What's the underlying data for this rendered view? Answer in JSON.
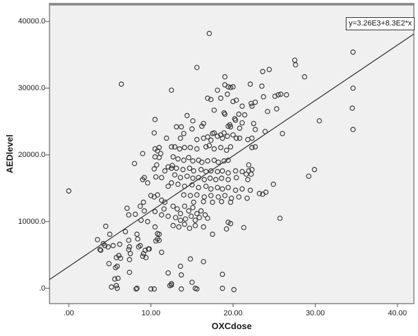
{
  "chart_data": {
    "type": "scatter",
    "title": "",
    "xlabel": "OXCdose",
    "ylabel": "AEDlevel",
    "grid": false,
    "legend": null,
    "xlim": [
      -2.34,
      42.0
    ],
    "ylim": [
      -2300,
      42700
    ],
    "x_ticks": {
      "values": [
        0,
        10,
        20,
        30,
        40
      ],
      "labels": [
        ".00",
        "10.00",
        "20.00",
        "30.00",
        "40.00"
      ]
    },
    "y_ticks": {
      "values": [
        0,
        10000,
        20000,
        30000,
        40000
      ],
      "labels": [
        ".0",
        "10000.0",
        "20000.0",
        "30000.0",
        "40000.0"
      ]
    },
    "regression_line": {
      "intercept": 3260,
      "slope": 830,
      "label": "y=3.26E3+8.3E2*x"
    },
    "marker": {
      "shape": "open-circle",
      "radius": 3.2,
      "stroke": "#3a3a3a"
    },
    "colors": {
      "page_bg": "#ffffff",
      "plot_bg": "#f0f0f0",
      "frame": "#4a4a4a",
      "top_edge": "#8a8a8a",
      "line": "#2b2b2b",
      "text": "#1a1a1a"
    },
    "points": [
      [
        6.4,
        30600
      ],
      [
        17.1,
        38200
      ],
      [
        15.6,
        33100
      ],
      [
        19.0,
        31700
      ],
      [
        23.6,
        32500
      ],
      [
        24.4,
        32800
      ],
      [
        19.0,
        30500
      ],
      [
        19.4,
        30200
      ],
      [
        19.7,
        30100
      ],
      [
        20.0,
        30200
      ],
      [
        22.1,
        30600
      ],
      [
        23.5,
        30300
      ],
      [
        18.1,
        29700
      ],
      [
        19.3,
        29100
      ],
      [
        16.9,
        28500
      ],
      [
        17.3,
        28300
      ],
      [
        18.5,
        28500
      ],
      [
        20.0,
        28000
      ],
      [
        20.4,
        28200
      ],
      [
        22.2,
        27700
      ],
      [
        22.7,
        27900
      ],
      [
        23.7,
        28700
      ],
      [
        25.1,
        28800
      ],
      [
        25.5,
        29000
      ],
      [
        25.8,
        29100
      ],
      [
        26.5,
        29000
      ],
      [
        12.5,
        29700
      ],
      [
        34.6,
        35400
      ],
      [
        27.5,
        34200
      ],
      [
        27.6,
        33500
      ],
      [
        28.7,
        31700
      ],
      [
        34.6,
        30000
      ],
      [
        10.5,
        25300
      ],
      [
        10.4,
        23300
      ],
      [
        11.9,
        22500
      ],
      [
        9.0,
        20200
      ],
      [
        10.5,
        20900
      ],
      [
        10.8,
        20600
      ],
      [
        11.0,
        21100
      ],
      [
        11.2,
        20200
      ],
      [
        10.5,
        19700
      ],
      [
        11.0,
        19600
      ],
      [
        12.5,
        21200
      ],
      [
        8.0,
        18700
      ],
      [
        10.4,
        17900
      ],
      [
        10.7,
        18500
      ],
      [
        11.7,
        17600
      ],
      [
        12.1,
        18200
      ],
      [
        9.2,
        16600
      ],
      [
        9.6,
        15800
      ],
      [
        9.0,
        16300
      ],
      [
        10.6,
        16700
      ],
      [
        11.3,
        16600
      ],
      [
        0.0,
        14600
      ],
      [
        12.1,
        15300
      ],
      [
        12.5,
        15800
      ],
      [
        9.1,
        12900
      ],
      [
        10.0,
        13900
      ],
      [
        10.4,
        13700
      ],
      [
        10.8,
        14000
      ],
      [
        11.3,
        13200
      ],
      [
        11.7,
        12900
      ],
      [
        12.5,
        18000
      ],
      [
        21.1,
        27300
      ],
      [
        22.3,
        27300
      ],
      [
        17.7,
        26700
      ],
      [
        18.9,
        26300
      ],
      [
        19.0,
        26100
      ],
      [
        24.2,
        26500
      ],
      [
        25.3,
        26900
      ],
      [
        20.7,
        26100
      ],
      [
        21.4,
        26000
      ],
      [
        14.4,
        25900
      ],
      [
        15.1,
        25100
      ],
      [
        16.4,
        24700
      ],
      [
        13.1,
        24200
      ],
      [
        13.7,
        24200
      ],
      [
        15.0,
        23900
      ],
      [
        16.2,
        24300
      ],
      [
        17.5,
        23200
      ],
      [
        17.7,
        23300
      ],
      [
        18.9,
        23300
      ],
      [
        19.4,
        24300
      ],
      [
        19.6,
        24500
      ],
      [
        19.7,
        24200
      ],
      [
        20.2,
        25400
      ],
      [
        20.3,
        25200
      ],
      [
        20.8,
        24000
      ],
      [
        21.1,
        24800
      ],
      [
        22.5,
        24700
      ],
      [
        22.7,
        23800
      ],
      [
        23.9,
        23500
      ],
      [
        26.0,
        23200
      ],
      [
        14.0,
        23200
      ],
      [
        13.6,
        22500
      ],
      [
        15.6,
        22300
      ],
      [
        16.4,
        22500
      ],
      [
        16.9,
        22700
      ],
      [
        17.3,
        22200
      ],
      [
        18.1,
        22800
      ],
      [
        18.5,
        23000
      ],
      [
        18.7,
        22500
      ],
      [
        19.3,
        22800
      ],
      [
        20.0,
        23000
      ],
      [
        20.4,
        22500
      ],
      [
        20.8,
        22500
      ],
      [
        21.8,
        22300
      ],
      [
        22.3,
        22500
      ],
      [
        12.9,
        21200
      ],
      [
        13.5,
        20900
      ],
      [
        14.1,
        21100
      ],
      [
        14.8,
        21100
      ],
      [
        15.6,
        20900
      ],
      [
        16.7,
        21200
      ],
      [
        17.1,
        21400
      ],
      [
        17.7,
        20900
      ],
      [
        18.5,
        21100
      ],
      [
        19.2,
        20700
      ],
      [
        19.7,
        21200
      ],
      [
        22.3,
        21100
      ],
      [
        22.7,
        21200
      ],
      [
        12.7,
        19700
      ],
      [
        13.3,
        19400
      ],
      [
        14.0,
        19200
      ],
      [
        14.6,
        19600
      ],
      [
        15.1,
        19100
      ],
      [
        15.8,
        19200
      ],
      [
        16.2,
        18900
      ],
      [
        16.9,
        19100
      ],
      [
        17.7,
        19200
      ],
      [
        18.2,
        18900
      ],
      [
        18.9,
        19100
      ],
      [
        19.4,
        19200
      ],
      [
        12.6,
        18400
      ],
      [
        13.1,
        18000
      ],
      [
        13.9,
        17800
      ],
      [
        14.7,
        18000
      ],
      [
        15.2,
        17600
      ],
      [
        16.1,
        17800
      ],
      [
        16.7,
        17500
      ],
      [
        17.3,
        17600
      ],
      [
        18.1,
        17500
      ],
      [
        18.7,
        17600
      ],
      [
        19.4,
        17300
      ],
      [
        20.3,
        17600
      ],
      [
        21.1,
        17500
      ],
      [
        21.9,
        17600
      ],
      [
        12.9,
        17000
      ],
      [
        13.6,
        16600
      ],
      [
        14.4,
        16800
      ],
      [
        15.1,
        16500
      ],
      [
        15.8,
        16600
      ],
      [
        16.5,
        16300
      ],
      [
        17.2,
        16500
      ],
      [
        17.9,
        16300
      ],
      [
        18.6,
        16500
      ],
      [
        19.4,
        16300
      ],
      [
        20.4,
        16600
      ],
      [
        21.8,
        16300
      ],
      [
        13.3,
        15600
      ],
      [
        14.1,
        15300
      ],
      [
        15.0,
        15500
      ],
      [
        15.8,
        15100
      ],
      [
        16.7,
        15300
      ],
      [
        17.3,
        14900
      ],
      [
        18.1,
        15100
      ],
      [
        18.7,
        14900
      ],
      [
        19.4,
        15100
      ],
      [
        20.3,
        14700
      ],
      [
        21.1,
        14900
      ],
      [
        22.1,
        14700
      ],
      [
        14.0,
        14000
      ],
      [
        14.8,
        13900
      ],
      [
        15.6,
        14000
      ],
      [
        16.5,
        13700
      ],
      [
        17.3,
        13900
      ],
      [
        18.2,
        13700
      ],
      [
        19.0,
        13900
      ],
      [
        19.8,
        13500
      ],
      [
        20.7,
        13700
      ],
      [
        21.7,
        13500
      ],
      [
        15.2,
        12900
      ],
      [
        16.4,
        13000
      ],
      [
        17.5,
        12900
      ],
      [
        18.6,
        13000
      ],
      [
        19.7,
        12900
      ],
      [
        21.9,
        18500
      ],
      [
        22.3,
        17800
      ],
      [
        21.6,
        17100
      ],
      [
        22.2,
        17100
      ],
      [
        23.2,
        14200
      ],
      [
        23.6,
        14100
      ],
      [
        24.0,
        14400
      ],
      [
        24.9,
        15600
      ],
      [
        34.5,
        27000
      ],
      [
        30.5,
        25100
      ],
      [
        34.6,
        23800
      ],
      [
        29.9,
        17800
      ],
      [
        29.2,
        16800
      ],
      [
        7.1,
        12000
      ],
      [
        7.3,
        11000
      ],
      [
        8.1,
        11100
      ],
      [
        8.7,
        12300
      ],
      [
        9.2,
        11600
      ],
      [
        8.8,
        10200
      ],
      [
        9.6,
        10000
      ],
      [
        10.5,
        11500
      ],
      [
        11.3,
        11000
      ],
      [
        11.6,
        11900
      ],
      [
        12.1,
        10800
      ],
      [
        4.5,
        9300
      ],
      [
        5.0,
        8100
      ],
      [
        3.5,
        7300
      ],
      [
        4.2,
        6700
      ],
      [
        3.9,
        5700
      ],
      [
        4.4,
        6400
      ],
      [
        4.8,
        6200
      ],
      [
        5.4,
        6400
      ],
      [
        6.2,
        6600
      ],
      [
        6.9,
        8500
      ],
      [
        7.3,
        7200
      ],
      [
        7.4,
        6200
      ],
      [
        7.5,
        5200
      ],
      [
        7.4,
        4300
      ],
      [
        8.3,
        8100
      ],
      [
        8.4,
        7400
      ],
      [
        8.5,
        6200
      ],
      [
        8.7,
        6400
      ],
      [
        9.8,
        5900
      ],
      [
        9.4,
        4600
      ],
      [
        9.1,
        5200
      ],
      [
        11.3,
        5400
      ],
      [
        10.5,
        9200
      ],
      [
        10.8,
        8200
      ],
      [
        11.0,
        8100
      ],
      [
        10.8,
        7400
      ],
      [
        11.0,
        7200
      ],
      [
        10.6,
        7100
      ],
      [
        5.8,
        4600
      ],
      [
        5.9,
        3300
      ],
      [
        6.0,
        1500
      ],
      [
        5.6,
        1400
      ],
      [
        5.8,
        400
      ],
      [
        5.9,
        0
      ],
      [
        5.2,
        200
      ],
      [
        7.4,
        2400
      ],
      [
        8.3,
        0
      ],
      [
        10.0,
        -100
      ],
      [
        10.4,
        -100
      ],
      [
        12.3,
        400
      ],
      [
        3.8,
        5800
      ],
      [
        4.9,
        3700
      ],
      [
        5.7,
        3100
      ],
      [
        6.1,
        4900
      ],
      [
        6.3,
        4500
      ],
      [
        7.3,
        5800
      ],
      [
        9.0,
        4800
      ],
      [
        9.3,
        5700
      ],
      [
        9.7,
        5900
      ],
      [
        12.1,
        2300
      ],
      [
        12.5,
        700
      ],
      [
        8.2,
        -100
      ],
      [
        12.7,
        12300
      ],
      [
        13.2,
        11900
      ],
      [
        13.6,
        11200
      ],
      [
        14.1,
        12300
      ],
      [
        14.6,
        11600
      ],
      [
        15.1,
        12100
      ],
      [
        15.6,
        11200
      ],
      [
        16.1,
        11600
      ],
      [
        13.0,
        10600
      ],
      [
        13.6,
        10200
      ],
      [
        14.2,
        10400
      ],
      [
        14.9,
        10800
      ],
      [
        15.4,
        10200
      ],
      [
        15.9,
        10600
      ],
      [
        16.6,
        11000
      ],
      [
        12.7,
        9400
      ],
      [
        13.4,
        9200
      ],
      [
        14.1,
        9600
      ],
      [
        14.7,
        9000
      ],
      [
        15.4,
        9400
      ],
      [
        16.4,
        9200
      ],
      [
        16.9,
        10500
      ],
      [
        17.5,
        8100
      ],
      [
        19.2,
        8900
      ],
      [
        21.3,
        9100
      ],
      [
        19.4,
        9900
      ],
      [
        19.7,
        9700
      ],
      [
        25.7,
        10500
      ],
      [
        14.8,
        4400
      ],
      [
        16.4,
        4000
      ],
      [
        13.6,
        3300
      ],
      [
        13.7,
        2000
      ],
      [
        15.0,
        900
      ],
      [
        13.7,
        -100
      ],
      [
        15.4,
        0
      ],
      [
        15.6,
        -100
      ],
      [
        18.7,
        2100
      ],
      [
        18.7,
        0
      ],
      [
        12.5,
        500
      ],
      [
        20.1,
        -200
      ]
    ]
  }
}
